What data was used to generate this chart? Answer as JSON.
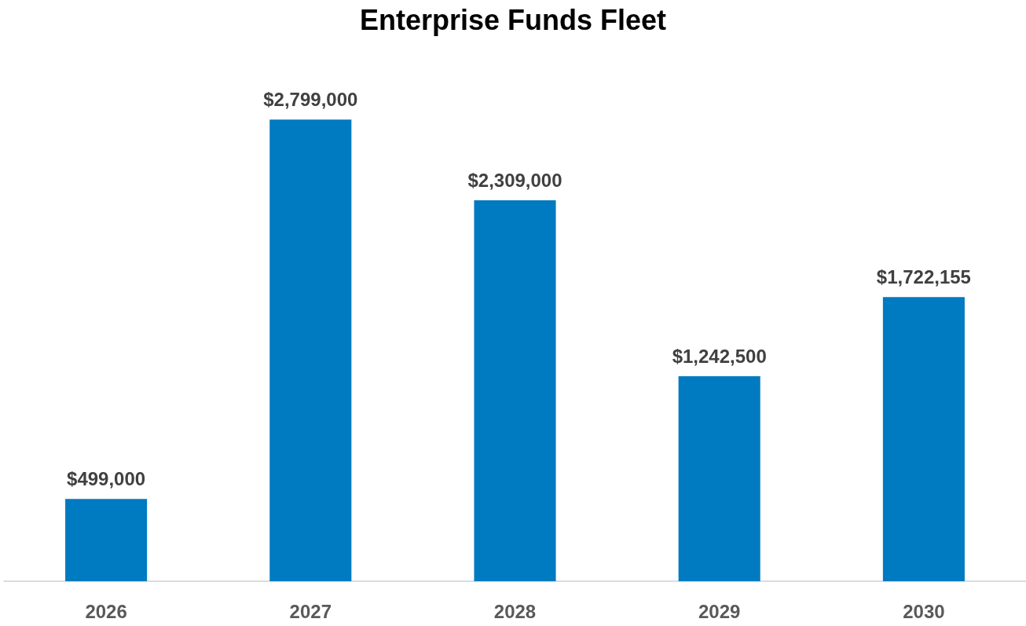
{
  "chart_data": {
    "type": "bar",
    "title": "Enterprise Funds Fleet",
    "categories": [
      "2026",
      "2027",
      "2028",
      "2029",
      "2030"
    ],
    "values": [
      499000,
      2799000,
      2309000,
      1242500,
      1722155
    ],
    "value_labels": [
      "$499,000",
      "$2,799,000",
      "$2,309,000",
      "$1,242,500",
      "$1,722,155"
    ],
    "color": "#007ac0"
  }
}
